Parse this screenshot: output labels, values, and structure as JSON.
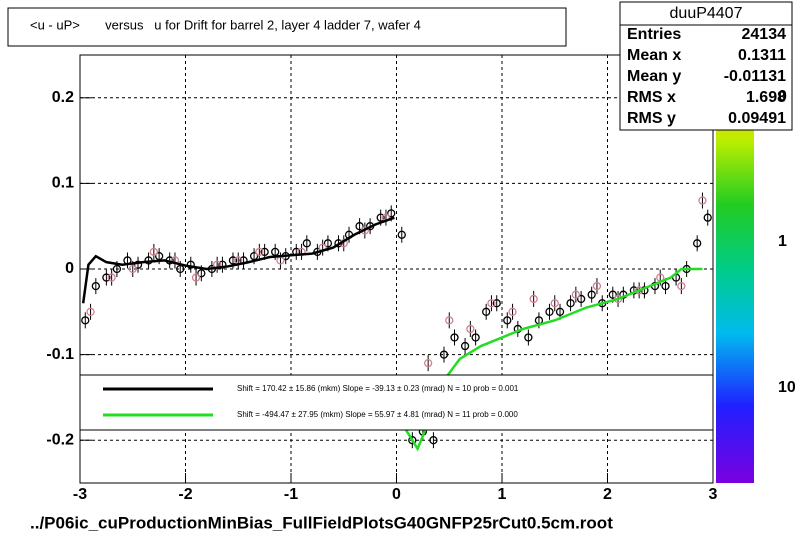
{
  "chart_data": {
    "type": "scatter",
    "title": "<u - uP>       versus   u for Drift for barrel 2, layer 4 ladder 7, wafer 4",
    "footer": "../P06ic_cuProductionMinBias_FullFieldPlotsG40GNFP25rCut0.5cm.root",
    "xlim": [
      -3,
      3
    ],
    "ylim": [
      -0.25,
      0.25
    ],
    "xticks": [
      -3,
      -2,
      -1,
      0,
      1,
      2,
      3
    ],
    "yticks": [
      -0.2,
      -0.1,
      0,
      0.1,
      0.2
    ],
    "grid": true,
    "palette_labels": [
      "0",
      "1",
      "10"
    ],
    "stats": {
      "title": "duuP4407",
      "rows": [
        [
          "Entries",
          24134
        ],
        [
          "Mean x",
          0.1311
        ],
        [
          "Mean y",
          -0.01131
        ],
        [
          "RMS x",
          1.698
        ],
        [
          "RMS y",
          0.09491
        ]
      ]
    },
    "series": [
      {
        "color": "#000000",
        "x": [
          -2.95,
          -2.85,
          -2.75,
          -2.65,
          -2.55,
          -2.45,
          -2.35,
          -2.25,
          -2.15,
          -2.05,
          -1.95,
          -1.85,
          -1.75,
          -1.65,
          -1.55,
          -1.45,
          -1.35,
          -1.25,
          -1.15,
          -1.05,
          -0.95,
          -0.85,
          -0.75,
          -0.65,
          -0.55,
          -0.45,
          -0.35,
          -0.25,
          -0.15,
          -0.05,
          0.05,
          0.15,
          0.25,
          0.35,
          0.45,
          0.55,
          0.65,
          0.75,
          0.85,
          0.95,
          1.05,
          1.15,
          1.25,
          1.35,
          1.45,
          1.55,
          1.65,
          1.75,
          1.85,
          1.95,
          2.05,
          2.15,
          2.25,
          2.35,
          2.45,
          2.55,
          2.65,
          2.75,
          2.85,
          2.95
        ],
        "values": [
          -0.06,
          -0.02,
          -0.01,
          0.0,
          0.01,
          0.005,
          0.01,
          0.015,
          0.01,
          0.0,
          0.005,
          -0.005,
          0.0,
          0.005,
          0.01,
          0.01,
          0.015,
          0.02,
          0.02,
          0.015,
          0.02,
          0.03,
          0.02,
          0.03,
          0.03,
          0.04,
          0.05,
          0.05,
          0.06,
          0.065,
          0.04,
          -0.2,
          -0.19,
          -0.2,
          -0.1,
          -0.08,
          -0.09,
          -0.08,
          -0.05,
          -0.04,
          -0.06,
          -0.07,
          -0.08,
          -0.06,
          -0.05,
          -0.05,
          -0.04,
          -0.035,
          -0.03,
          -0.04,
          -0.03,
          -0.03,
          -0.025,
          -0.025,
          -0.02,
          -0.02,
          -0.01,
          0.0,
          0.03,
          0.06
        ]
      },
      {
        "color": "#d08090",
        "x": [
          -2.9,
          -2.7,
          -2.5,
          -2.3,
          -2.1,
          -1.9,
          -1.7,
          -1.5,
          -1.3,
          -1.1,
          -0.9,
          -0.7,
          -0.5,
          -0.3,
          -0.1,
          0.3,
          0.5,
          0.7,
          0.9,
          1.1,
          1.3,
          1.5,
          1.7,
          1.9,
          2.1,
          2.3,
          2.5,
          2.7,
          2.9
        ],
        "values": [
          -0.05,
          -0.01,
          0.0,
          0.02,
          0.01,
          -0.01,
          0.005,
          0.01,
          0.02,
          0.01,
          0.02,
          0.025,
          0.03,
          0.045,
          0.06,
          -0.11,
          -0.06,
          -0.07,
          -0.04,
          -0.05,
          -0.035,
          -0.04,
          -0.03,
          -0.02,
          -0.035,
          -0.025,
          -0.01,
          -0.02,
          0.08
        ]
      }
    ],
    "fits": [
      {
        "label": "Shift =   170.42 ± 15.86 (mkm) Slope =   -39.13 ± 0.23 (mrad)  N = 10 prob = 0.001",
        "color": "#000000",
        "x": [
          -2.97,
          -2.92,
          -2.85,
          -2.75,
          -2.6,
          -2.4,
          -2.2,
          -2.0,
          -1.8,
          -1.6,
          -1.4,
          -1.2,
          -1.0,
          -0.8,
          -0.6,
          -0.4,
          -0.2,
          -0.02
        ],
        "values": [
          -0.04,
          0.005,
          0.015,
          0.008,
          0.005,
          0.008,
          0.01,
          0.004,
          0.0,
          0.003,
          0.008,
          0.014,
          0.016,
          0.018,
          0.025,
          0.04,
          0.052,
          0.06
        ]
      },
      {
        "label": "Shift =  -494.47 ± 27.95 (mkm) Slope =    55.97 ± 4.81 (mrad)  N = 11 prob = 0.000",
        "color": "#22dd22",
        "x": [
          0.05,
          0.15,
          0.2,
          0.3,
          0.45,
          0.6,
          0.8,
          1.0,
          1.2,
          1.5,
          1.8,
          2.1,
          2.4,
          2.6,
          2.7,
          2.8,
          2.9
        ],
        "values": [
          -0.18,
          -0.2,
          -0.21,
          -0.18,
          -0.13,
          -0.105,
          -0.09,
          -0.08,
          -0.07,
          -0.06,
          -0.045,
          -0.035,
          -0.02,
          -0.01,
          0.0,
          0.0,
          0.0
        ]
      }
    ]
  }
}
